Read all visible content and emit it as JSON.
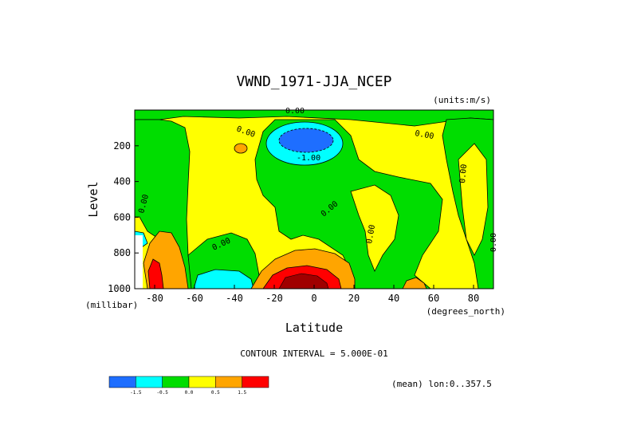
{
  "chart_data": {
    "type": "heatmap",
    "title": "VWND_1971-JJA_NCEP",
    "units_label": "(units:m/s)",
    "xlabel": "Latitude",
    "xlabel_units": "(degrees_north)",
    "ylabel": "Level",
    "ylabel_units": "(millibar)",
    "xlim": [
      -90,
      90
    ],
    "ylim": [
      1000,
      0
    ],
    "x_ticks": [
      -80,
      -60,
      -40,
      -20,
      0,
      20,
      40,
      60,
      80
    ],
    "y_ticks": [
      200,
      400,
      600,
      800,
      1000
    ],
    "x_tick_labels": [
      "-80",
      "-60",
      "-40",
      "-20",
      "0",
      "20",
      "40",
      "60",
      "80"
    ],
    "y_tick_labels": [
      "200",
      "400",
      "600",
      "800",
      "1000"
    ],
    "contour_interval_text": "CONTOUR INTERVAL = 5.000E-01",
    "mean_text": "(mean) lon:0..357.5",
    "contour_labels": [
      "0.00",
      "0.00",
      "0.00",
      "0.00",
      "0.00",
      "0.00",
      "0.00",
      "0.00",
      "0.00",
      "-1.00"
    ],
    "colorbar": {
      "colors": [
        "#1e6eff",
        "#00ffff",
        "#00dd00",
        "#ffff00",
        "#ffa500",
        "#ff0000"
      ],
      "tick_labels": [
        "-1.5",
        "-0.5",
        "0.0",
        "0.5",
        "1.5"
      ]
    },
    "regions": [
      {
        "level": "positive",
        "color": "#ffff00",
        "description": "background yellow"
      },
      {
        "level": "negative",
        "color": "#00dd00",
        "description": "green negative"
      },
      {
        "level": "strong_negative",
        "color": "#1e6eff"
      },
      {
        "level": "negative_mid",
        "color": "#00ffff"
      },
      {
        "level": "positive_mid",
        "color": "#ffa500"
      },
      {
        "level": "strong_positive",
        "color": "#ff0000"
      }
    ],
    "grid": false
  },
  "colors": {
    "yellow": "#ffff00",
    "green": "#00dd00",
    "cyan": "#00ffff",
    "blue": "#1e6eff",
    "orange": "#ffa500",
    "red": "#ff0000",
    "darkred": "#a00000"
  }
}
